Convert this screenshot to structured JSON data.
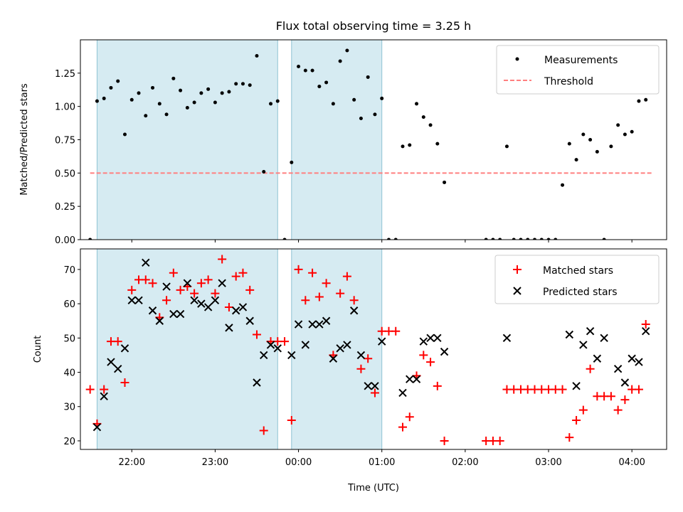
{
  "chart_data": [
    {
      "type": "scatter",
      "title": "Flux total observing time = 3.25 h",
      "xlabel": "",
      "ylabel": "Matched/Predicted stars",
      "xlim": [
        "21:23",
        "04:25"
      ],
      "ylim": [
        0,
        1.5
      ],
      "x_tick_labels": [
        "22:00",
        "23:00",
        "00:00",
        "01:00",
        "02:00",
        "03:00",
        "04:00"
      ],
      "y_ticks": [
        "0.00",
        "0.25",
        "0.50",
        "0.75",
        "1.00",
        "1.25"
      ],
      "shaded_intervals": [
        [
          "21:35",
          "23:45"
        ],
        [
          "23:55",
          "01:00"
        ]
      ],
      "legend": {
        "position": "upper right",
        "entries": [
          "Measurements",
          "Threshold"
        ]
      },
      "series": [
        {
          "name": "Threshold",
          "style": "dashed line",
          "x": [
            "21:30",
            "04:15"
          ],
          "y": [
            0.5,
            0.5
          ]
        },
        {
          "name": "Measurements",
          "style": "dot",
          "x": [
            "21:30",
            "21:35",
            "21:40",
            "21:45",
            "21:50",
            "21:55",
            "22:00",
            "22:05",
            "22:10",
            "22:15",
            "22:20",
            "22:25",
            "22:30",
            "22:35",
            "22:40",
            "22:45",
            "22:50",
            "22:55",
            "23:00",
            "23:05",
            "23:10",
            "23:15",
            "23:20",
            "23:25",
            "23:30",
            "23:35",
            "23:40",
            "23:45",
            "23:50",
            "23:55",
            "00:00",
            "00:05",
            "00:10",
            "00:15",
            "00:20",
            "00:25",
            "00:30",
            "00:35",
            "00:40",
            "00:45",
            "00:50",
            "00:55",
            "01:00",
            "01:05",
            "01:10",
            "01:15",
            "01:20",
            "01:25",
            "01:30",
            "01:35",
            "01:40",
            "01:45",
            "02:15",
            "02:20",
            "02:25",
            "02:30",
            "02:35",
            "02:40",
            "02:45",
            "02:50",
            "02:55",
            "03:00",
            "03:05",
            "03:10",
            "03:15",
            "03:20",
            "03:25",
            "03:30",
            "03:35",
            "03:40",
            "03:45",
            "03:50",
            "03:55",
            "04:00",
            "04:05",
            "04:10"
          ],
          "y": [
            0.0,
            1.04,
            1.06,
            1.14,
            1.19,
            0.79,
            1.05,
            1.1,
            0.93,
            1.14,
            1.02,
            0.94,
            1.21,
            1.12,
            0.99,
            1.03,
            1.1,
            1.13,
            1.03,
            1.1,
            1.11,
            1.17,
            1.17,
            1.16,
            1.38,
            0.51,
            1.02,
            1.04,
            0.0,
            0.58,
            1.3,
            1.27,
            1.27,
            1.15,
            1.18,
            1.02,
            1.34,
            1.42,
            1.05,
            0.91,
            1.22,
            0.94,
            1.06,
            0.0,
            0.0,
            0.7,
            0.71,
            1.02,
            0.92,
            0.86,
            0.72,
            0.43,
            0.0,
            0.0,
            0.0,
            0.7,
            0.0,
            0.0,
            0.0,
            0.0,
            0.0,
            0.0,
            0.0,
            0.41,
            0.72,
            0.6,
            0.79,
            0.75,
            0.66,
            0.0,
            0.7,
            0.86,
            0.79,
            0.81,
            1.04,
            1.05
          ]
        }
      ]
    },
    {
      "type": "scatter",
      "title": "",
      "xlabel": "Time (UTC)",
      "ylabel": "Count",
      "xlim": [
        "21:23",
        "04:25"
      ],
      "ylim": [
        17.5,
        76
      ],
      "x_tick_labels": [
        "22:00",
        "23:00",
        "00:00",
        "01:00",
        "02:00",
        "03:00",
        "04:00"
      ],
      "y_ticks": [
        "20",
        "30",
        "40",
        "50",
        "60",
        "70"
      ],
      "shaded_intervals": [
        [
          "21:35",
          "23:45"
        ],
        [
          "23:55",
          "01:00"
        ]
      ],
      "legend": {
        "position": "upper right",
        "entries": [
          "Matched stars",
          "Predicted stars"
        ]
      },
      "series": [
        {
          "name": "Matched stars",
          "color": "#ff0000",
          "marker": "plus",
          "x": [
            "21:30",
            "21:35",
            "21:40",
            "21:45",
            "21:50",
            "21:55",
            "22:00",
            "22:05",
            "22:10",
            "22:15",
            "22:20",
            "22:25",
            "22:30",
            "22:35",
            "22:40",
            "22:45",
            "22:50",
            "22:55",
            "23:00",
            "23:05",
            "23:10",
            "23:15",
            "23:20",
            "23:25",
            "23:30",
            "23:35",
            "23:40",
            "23:45",
            "23:50",
            "23:55",
            "00:00",
            "00:05",
            "00:10",
            "00:15",
            "00:20",
            "00:25",
            "00:30",
            "00:35",
            "00:40",
            "00:45",
            "00:50",
            "00:55",
            "01:00",
            "01:05",
            "01:10",
            "01:15",
            "01:20",
            "01:25",
            "01:30",
            "01:35",
            "01:40",
            "01:45",
            "02:15",
            "02:20",
            "02:25",
            "02:30",
            "02:35",
            "02:40",
            "02:45",
            "02:50",
            "02:55",
            "03:00",
            "03:05",
            "03:10",
            "03:15",
            "03:20",
            "03:25",
            "03:30",
            "03:35",
            "03:40",
            "03:45",
            "03:50",
            "03:55",
            "04:00",
            "04:05",
            "04:10"
          ],
          "y": [
            35,
            25,
            35,
            49,
            49,
            37,
            64,
            67,
            67,
            66,
            56,
            61,
            69,
            64,
            65,
            63,
            66,
            67,
            63,
            73,
            59,
            68,
            69,
            64,
            51,
            23,
            49,
            49,
            49,
            26,
            70,
            61,
            69,
            62,
            66,
            45,
            63,
            68,
            61,
            41,
            44,
            34,
            52,
            52,
            52,
            24,
            27,
            39,
            45,
            43,
            36,
            20,
            20,
            20,
            20,
            35,
            35,
            35,
            35,
            35,
            35,
            35,
            35,
            35,
            21,
            26,
            29,
            41,
            33,
            33,
            33,
            29,
            32,
            35,
            35,
            54
          ]
        },
        {
          "name": "Predicted stars",
          "color": "#000000",
          "marker": "x",
          "x": [
            "21:35",
            "21:40",
            "21:45",
            "21:50",
            "21:55",
            "22:00",
            "22:05",
            "22:10",
            "22:15",
            "22:20",
            "22:25",
            "22:30",
            "22:35",
            "22:40",
            "22:45",
            "22:50",
            "22:55",
            "23:00",
            "23:05",
            "23:10",
            "23:15",
            "23:20",
            "23:25",
            "23:30",
            "23:35",
            "23:40",
            "23:45",
            "23:55",
            "00:00",
            "00:05",
            "00:10",
            "00:15",
            "00:20",
            "00:25",
            "00:30",
            "00:35",
            "00:40",
            "00:45",
            "00:50",
            "00:55",
            "01:00",
            "01:15",
            "01:20",
            "01:25",
            "01:30",
            "01:35",
            "01:40",
            "01:45",
            "02:30",
            "03:15",
            "03:20",
            "03:25",
            "03:30",
            "03:35",
            "03:40",
            "03:50",
            "03:55",
            "04:00",
            "04:05",
            "04:10"
          ],
          "y": [
            24,
            33,
            43,
            41,
            47,
            61,
            61,
            72,
            58,
            55,
            65,
            57,
            57,
            66,
            61,
            60,
            59,
            61,
            66,
            53,
            58,
            59,
            55,
            37,
            45,
            48,
            47,
            45,
            54,
            48,
            54,
            54,
            55,
            44,
            47,
            48,
            58,
            45,
            36,
            36,
            49,
            34,
            38,
            38,
            49,
            50,
            50,
            46,
            50,
            51,
            36,
            48,
            52,
            44,
            50,
            41,
            37,
            44,
            43,
            52
          ]
        }
      ]
    }
  ]
}
